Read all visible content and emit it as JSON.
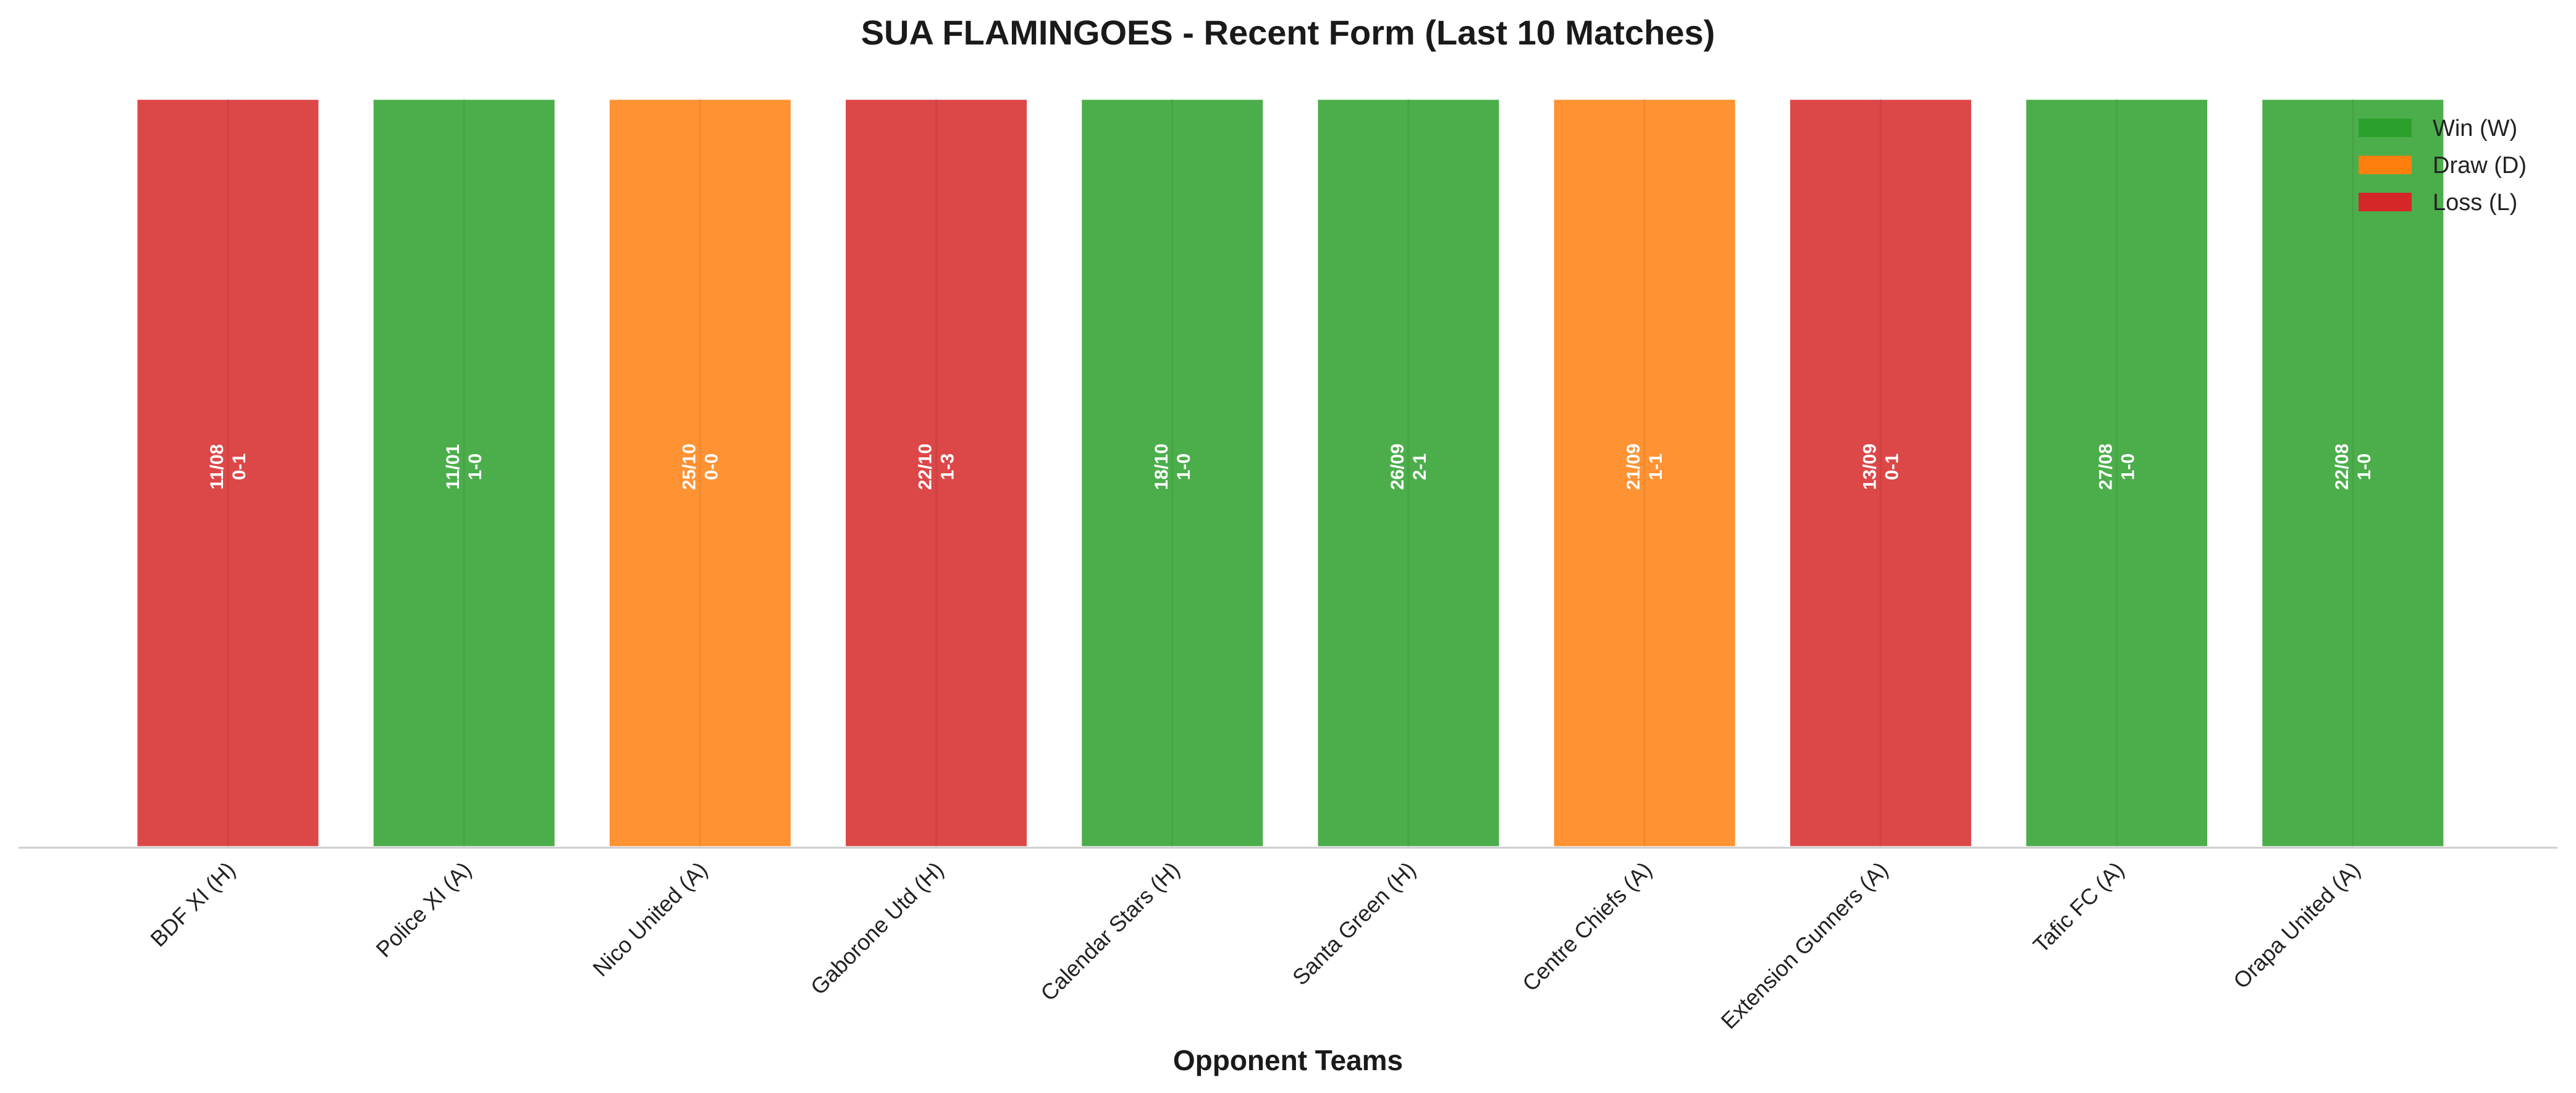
{
  "chart_data": {
    "type": "bar",
    "title": "SUA FLAMINGOES - Recent Form (Last 10 Matches)",
    "xlabel": "Opponent Teams",
    "ylabel": "",
    "grid": false,
    "legend_position": "top-right",
    "legend": [
      {
        "key": "W",
        "label": "Win (W)",
        "color": "#2ca02c"
      },
      {
        "key": "D",
        "label": "Draw (D)",
        "color": "#ff7f0e"
      },
      {
        "key": "L",
        "label": "Loss (L)",
        "color": "#d62728"
      }
    ],
    "categories": [
      "BDF XI (H)",
      "Police XI (A)",
      "Nico United (A)",
      "Gaborone Utd (H)",
      "Calendar Stars (H)",
      "Santa Green (H)",
      "Centre Chiefs (A)",
      "Extension Gunners (A)",
      "Tafic FC (A)",
      "Orapa United (A)"
    ],
    "values": [
      1,
      1,
      1,
      1,
      1,
      1,
      1,
      1,
      1,
      1
    ],
    "ylim": [
      0,
      1
    ],
    "results": [
      "L",
      "W",
      "D",
      "L",
      "W",
      "W",
      "D",
      "L",
      "W",
      "W"
    ],
    "dates": [
      "11/08",
      "11/01",
      "25/10",
      "22/10",
      "18/10",
      "26/09",
      "21/09",
      "13/09",
      "27/08",
      "22/08"
    ],
    "scores": [
      "0-1",
      "1-0",
      "0-0",
      "1-3",
      "1-0",
      "2-1",
      "1-1",
      "0-1",
      "1-0",
      "1-0"
    ]
  }
}
